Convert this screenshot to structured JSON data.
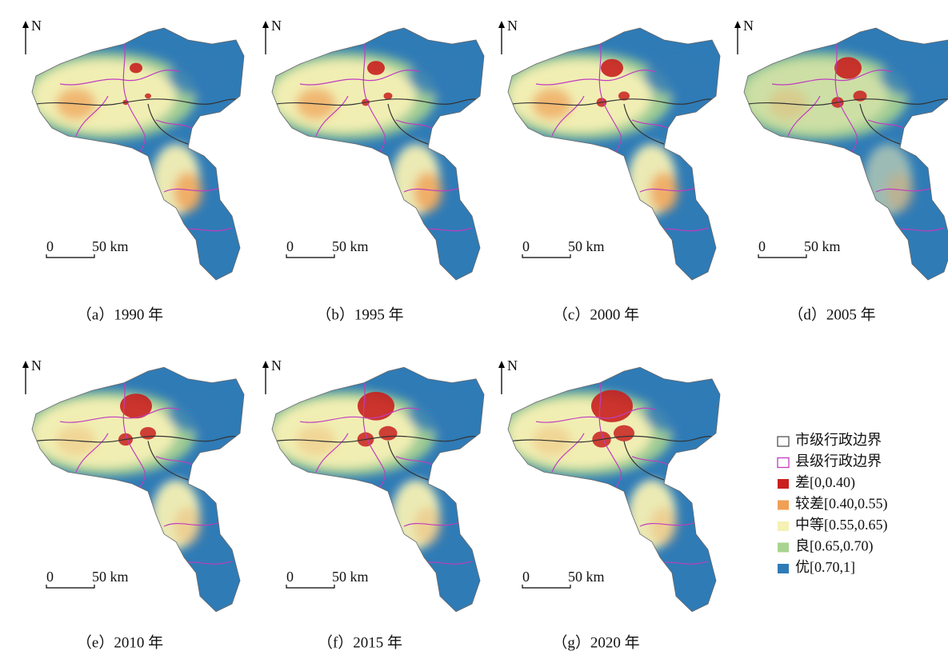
{
  "panels": [
    {
      "caption": "（a）1990 年",
      "north": "N",
      "scale_start": "0",
      "scale_end": "50 km"
    },
    {
      "caption": "（b）1995 年",
      "north": "N",
      "scale_start": "0",
      "scale_end": "50 km"
    },
    {
      "caption": "（c）2000 年",
      "north": "N",
      "scale_start": "0",
      "scale_end": "50 km"
    },
    {
      "caption": "（d）2005 年",
      "north": "N",
      "scale_start": "0",
      "scale_end": "50 km"
    },
    {
      "caption": "（e）2010 年",
      "north": "N",
      "scale_start": "0",
      "scale_end": "50 km"
    },
    {
      "caption": "（f）2015 年",
      "north": "N",
      "scale_start": "0",
      "scale_end": "50 km"
    },
    {
      "caption": "（g）2020 年",
      "north": "N",
      "scale_start": "0",
      "scale_end": "50 km"
    }
  ],
  "legend": [
    {
      "label": "市级行政边界",
      "color": "#555555",
      "style": "outline"
    },
    {
      "label": "县级行政边界",
      "color": "#c03cc0",
      "style": "outline"
    },
    {
      "label": "差[0,0.40)",
      "color": "#c8201e",
      "style": "fill"
    },
    {
      "label": "较差[0.40,0.55)",
      "color": "#f0a055",
      "style": "fill"
    },
    {
      "label": "中等[0.55,0.65)",
      "color": "#f5f0b4",
      "style": "fill"
    },
    {
      "label": "良[0.65,0.70)",
      "color": "#a8d490",
      "style": "fill"
    },
    {
      "label": "优[0.70,1]",
      "color": "#2f7bb6",
      "style": "fill"
    }
  ]
}
